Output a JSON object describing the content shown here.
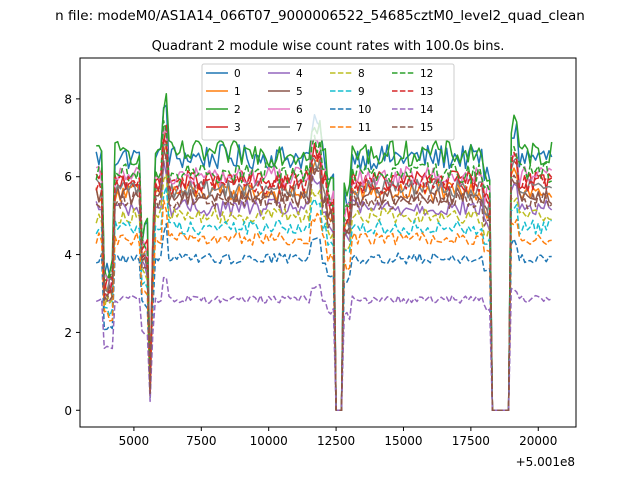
{
  "figure": {
    "suptitle": "n file: modeM0/AS1A14_066T07_9000006522_54685cztM0_level2_quad_clean"
  },
  "chart_data": {
    "type": "line",
    "title": "Quadrant 2 module wise count rates with 100.0s bins.",
    "xlabel": "",
    "ylabel": "",
    "x_offset_label": "+5.001e8",
    "xlim": [
      3000,
      21400
    ],
    "ylim": [
      -0.43,
      9.05
    ],
    "xticks": [
      5000,
      7500,
      10000,
      12500,
      15000,
      17500,
      20000
    ],
    "xtick_labels": [
      "5000",
      "7500",
      "10000",
      "12500",
      "15000",
      "17500",
      "20000"
    ],
    "yticks": [
      0,
      2,
      4,
      6,
      8
    ],
    "ytick_labels": [
      "0",
      "2",
      "4",
      "6",
      "8"
    ],
    "legend_position": "upper center",
    "x_start": 3600,
    "x_step": 100,
    "gaps": [
      [
        5600,
        5600
      ],
      [
        12500,
        12700
      ],
      [
        18300,
        18900
      ]
    ],
    "series": [
      {
        "name": "0",
        "color": "#1f77b4",
        "dash": "solid",
        "base": 6.5,
        "noise": 0.25
      },
      {
        "name": "1",
        "color": "#ff7f0e",
        "dash": "solid",
        "base": 5.6,
        "noise": 0.22
      },
      {
        "name": "2",
        "color": "#2ca02c",
        "dash": "solid",
        "base": 6.6,
        "noise": 0.25
      },
      {
        "name": "3",
        "color": "#d62728",
        "dash": "solid",
        "base": 5.9,
        "noise": 0.22
      },
      {
        "name": "4",
        "color": "#9467bd",
        "dash": "solid",
        "base": 5.2,
        "noise": 0.22
      },
      {
        "name": "5",
        "color": "#8c564b",
        "dash": "solid",
        "base": 5.5,
        "noise": 0.22
      },
      {
        "name": "6",
        "color": "#e377c2",
        "dash": "solid",
        "base": 6.0,
        "noise": 0.22
      },
      {
        "name": "7",
        "color": "#7f7f7f",
        "dash": "solid",
        "base": 5.7,
        "noise": 0.22
      },
      {
        "name": "8",
        "color": "#bcbd22",
        "dash": "dashed",
        "base": 5.0,
        "noise": 0.2
      },
      {
        "name": "9",
        "color": "#17becf",
        "dash": "dashed",
        "base": 4.7,
        "noise": 0.2
      },
      {
        "name": "10",
        "color": "#1f77b4",
        "dash": "dashed",
        "base": 3.9,
        "noise": 0.18
      },
      {
        "name": "11",
        "color": "#ff7f0e",
        "dash": "dashed",
        "base": 4.4,
        "noise": 0.18
      },
      {
        "name": "12",
        "color": "#2ca02c",
        "dash": "dashed",
        "base": 6.1,
        "noise": 0.22
      },
      {
        "name": "13",
        "color": "#d62728",
        "dash": "dashed",
        "base": 5.8,
        "noise": 0.22
      },
      {
        "name": "14",
        "color": "#9467bd",
        "dash": "dashed",
        "base": 2.85,
        "noise": 0.18
      },
      {
        "name": "15",
        "color": "#8c564b",
        "dash": "dashed",
        "base": 5.4,
        "noise": 0.22
      }
    ]
  }
}
